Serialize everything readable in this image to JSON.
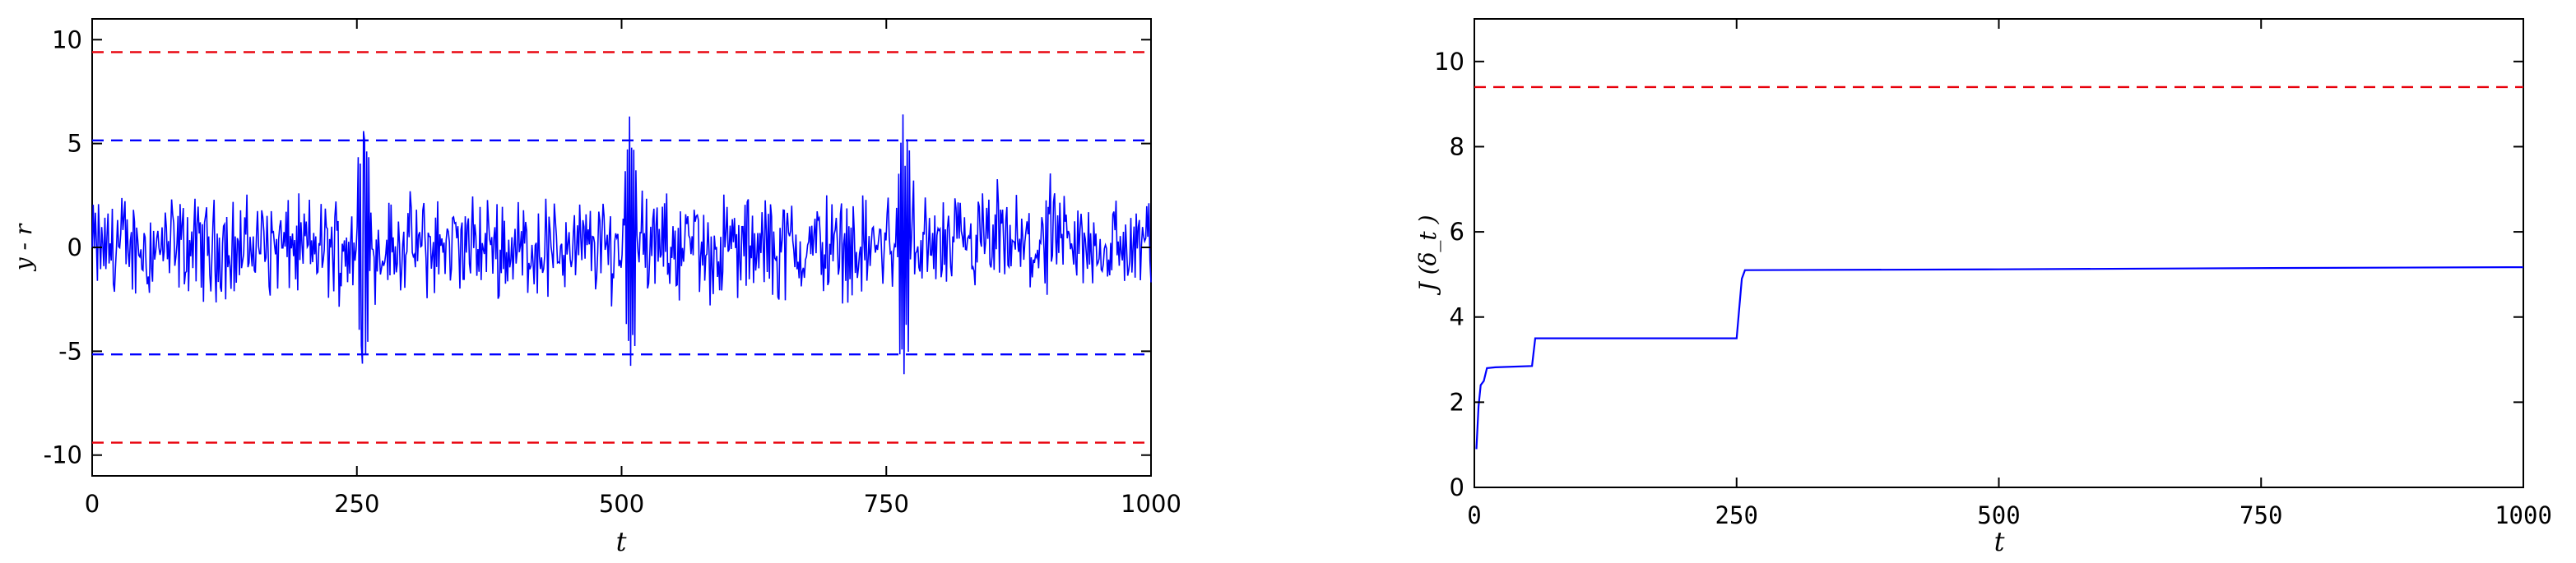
{
  "chart_data": [
    {
      "type": "line",
      "title": "",
      "xlabel": "t",
      "ylabel": "y - r",
      "xlim": [
        0,
        1000
      ],
      "ylim": [
        -11,
        11
      ],
      "xticks": [
        0,
        250,
        500,
        750,
        1000
      ],
      "yticks": [
        -10,
        -5,
        0,
        5,
        10
      ],
      "grid": false,
      "legend": "none",
      "reference_lines": [
        {
          "y": 9.4,
          "color": "#e8000b",
          "style": "dashed"
        },
        {
          "y": 5.15,
          "color": "#0000ff",
          "style": "dashed"
        },
        {
          "y": -5.15,
          "color": "#0000ff",
          "style": "dashed"
        },
        {
          "y": -9.4,
          "color": "#e8000b",
          "style": "dashed"
        }
      ],
      "series": [
        {
          "color": "#0000ff",
          "points": 1000,
          "typical_amplitude": [
            -3,
            4
          ],
          "spikes": [
            {
              "x": 255,
              "values": [
                -5.6,
                5.6
              ]
            },
            {
              "x": 507,
              "values": [
                6.3,
                -5.7
              ]
            },
            {
              "x": 765,
              "values": [
                6.4,
                -6.1
              ]
            }
          ]
        }
      ]
    },
    {
      "type": "line",
      "title": "",
      "xlabel": "t",
      "ylabel": "J (δ_t )",
      "xlim": [
        0,
        1000
      ],
      "ylim": [
        0,
        11
      ],
      "xticks": [
        0,
        250,
        500,
        750,
        1000
      ],
      "yticks": [
        0,
        2,
        4,
        6,
        8,
        10
      ],
      "grid": false,
      "legend": "none",
      "reference_lines": [
        {
          "y": 9.4,
          "color": "#e8000b",
          "style": "dashed"
        }
      ],
      "series": [
        {
          "color": "#0000ff",
          "x": [
            2,
            4,
            6,
            9,
            12,
            20,
            55,
            58,
            250,
            255,
            258,
            500,
            760,
            1000
          ],
          "y": [
            0.9,
            1.9,
            2.4,
            2.5,
            2.8,
            2.82,
            2.85,
            3.5,
            3.5,
            4.9,
            5.1,
            5.12,
            5.15,
            5.17
          ]
        }
      ]
    }
  ]
}
